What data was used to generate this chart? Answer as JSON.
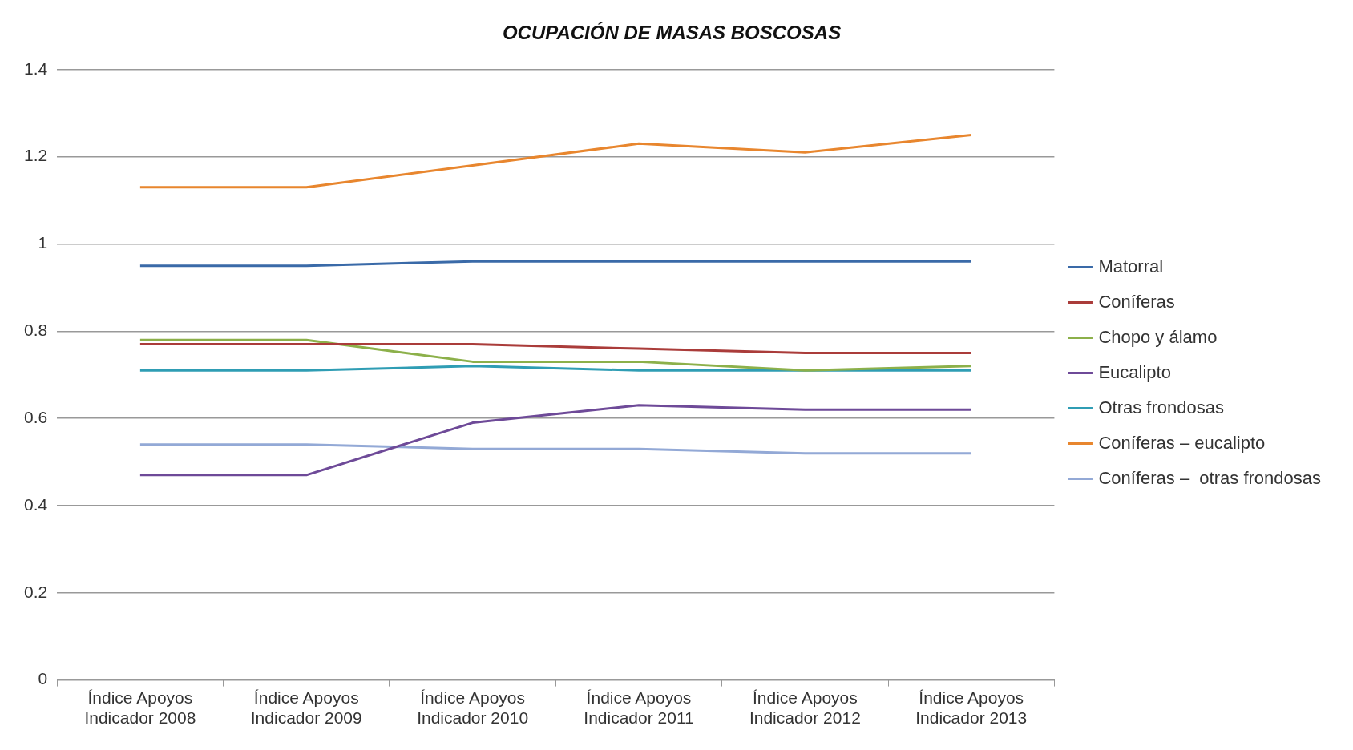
{
  "chart_data": {
    "type": "line",
    "title": "OCUPACIÓN DE MASAS BOSCOSAS",
    "categories": [
      "Índice Apoyos\nIndicador 2008",
      "Índice Apoyos\nIndicador 2009",
      "Índice Apoyos\nIndicador 2010",
      "Índice Apoyos\nIndicador 2011",
      "Índice Apoyos\nIndicador 2012",
      "Índice Apoyos\nIndicador 2013"
    ],
    "series": [
      {
        "name": "Matorral",
        "color": "#3a6aa8",
        "values": [
          0.95,
          0.95,
          0.96,
          0.96,
          0.96,
          0.96
        ]
      },
      {
        "name": "Coníferas",
        "color": "#aa3c3a",
        "values": [
          0.77,
          0.77,
          0.77,
          0.76,
          0.75,
          0.75
        ]
      },
      {
        "name": "Chopo y álamo",
        "color": "#8cb04a",
        "values": [
          0.78,
          0.78,
          0.73,
          0.73,
          0.71,
          0.72
        ]
      },
      {
        "name": "Eucalipto",
        "color": "#6e4a98",
        "values": [
          0.47,
          0.47,
          0.59,
          0.63,
          0.62,
          0.62
        ]
      },
      {
        "name": "Otras frondosas",
        "color": "#2f9db4",
        "values": [
          0.71,
          0.71,
          0.72,
          0.71,
          0.71,
          0.71
        ]
      },
      {
        "name": "Coníferas – eucalipto",
        "color": "#e8862e",
        "values": [
          1.13,
          1.13,
          1.18,
          1.23,
          1.21,
          1.25
        ]
      },
      {
        "name": "Coníferas –  otras frondosas",
        "color": "#93a9d6",
        "values": [
          0.54,
          0.54,
          0.53,
          0.53,
          0.52,
          0.52
        ]
      }
    ],
    "ylim": [
      0,
      1.4
    ],
    "yticks": [
      0,
      0.2,
      0.4,
      0.6,
      0.8,
      1,
      1.2,
      1.4
    ],
    "grid": "y",
    "legend": "right",
    "marker": "none",
    "line_style": "solid"
  }
}
